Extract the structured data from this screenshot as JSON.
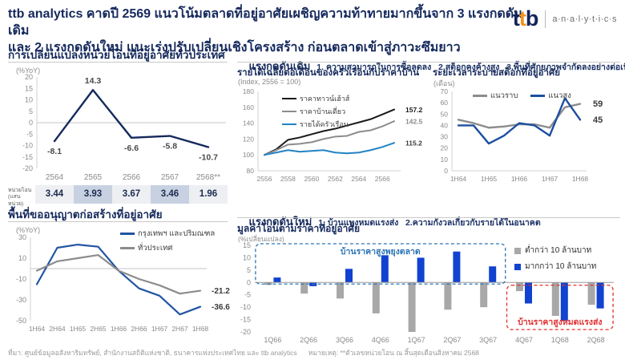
{
  "header": {
    "title_line1": "ttb analytics คาดปี 2569 แนวโน้มตลาดที่อยู่อาศัยเผชิญความท้าทายมากขึ้นจาก 3 แรงกดดันเดิม",
    "title_line2": "และ 2 แรงกดดันใหม่ แนะเร่งปรับเปลี่ยนเชิงโครงสร้าง ก่อนตลาดเข้าสู่ภาวะซึมยาว",
    "logo": {
      "t1": "t",
      "t2": "t",
      "b": "b",
      "sub": "a·n·a·l·y·t·i·c·s"
    }
  },
  "sections": {
    "old_heading": "แรงกดดันเดิม",
    "old_items": "1. ความสามารถในการซื้อลดลง   2.สต็อกคงค้างสูง   3.พื้นที่ศักยภาพจำกัดลงอย่างต่อเนื่อง",
    "new_heading": "แรงกดดันใหม่",
    "new_items": "1. บ้านแพงหมดแรงส่ง   2.ความกังวลเกี่ยวกับรายได้ในอนาคต"
  },
  "colors": {
    "navy": "#15295c",
    "orange": "#f5911e",
    "bright_blue": "#1142d0",
    "mid_blue": "#2155a3",
    "steel_blue": "#2283c5",
    "gray_line": "#8c8c8c",
    "bar_gray": "#a8a8a8",
    "annotation_blue": "#2e75b6",
    "annotation_red": "#e03131",
    "table_bg": "#edeff2",
    "table_highlight": "#c7d1e1"
  },
  "chart_data": [
    {
      "id": "transfer-units-yoy",
      "type": "line",
      "title": "การเปลี่ยนแปลงหน่วยโอนที่อยู่อาศัยทั่วประเทศ",
      "unit_label": "(%YoY)",
      "categories": [
        "2564",
        "2565",
        "2566",
        "2567",
        "2568**"
      ],
      "ylim": [
        -20,
        20
      ],
      "yticks": [
        20,
        15,
        10,
        5,
        0,
        -5,
        -10,
        -15,
        -20
      ],
      "grid": "zero-line-only",
      "series": [
        {
          "name": "การเปลี่ยนแปลงหน่วยโอน (%YoY)",
          "color": "#15295c",
          "values": [
            -8.1,
            14.3,
            -6.6,
            -5.8,
            -10.7
          ]
        }
      ],
      "table": {
        "label_line1": "หน่วยโอน",
        "label_line2": "(แสนหน่วย)",
        "values": [
          "3.44",
          "3.93",
          "3.67",
          "3.46",
          "1.96"
        ],
        "highlighted_columns": [
          1,
          3
        ]
      }
    },
    {
      "id": "income-vs-house-price",
      "type": "line",
      "title": "รายได้เฉลี่ยต่อเดือนของครัวเรือนกับราคาบ้าน",
      "unit_label": "(Index, 2556 = 100)",
      "categories": [
        "2556",
        "2557",
        "2558",
        "2559",
        "2560",
        "2561",
        "2562",
        "2563",
        "2564",
        "2565",
        "2566",
        "2567"
      ],
      "xticks_shown": [
        "2556",
        "2558",
        "2560",
        "2562",
        "2564",
        "2566"
      ],
      "ylim": [
        80,
        180
      ],
      "yticks": [
        180,
        160,
        140,
        120,
        100,
        80
      ],
      "series": [
        {
          "name": "ราคาทาวน์เฮ้าส์",
          "color": "#1a1a1a",
          "end_label": "157.2",
          "values": [
            100,
            107,
            119,
            122,
            126,
            130,
            133,
            137,
            141,
            145,
            151,
            157.2
          ]
        },
        {
          "name": "ราคาบ้านเดี่ยว",
          "color": "#8c8c8c",
          "end_label": "142.5",
          "values": [
            100,
            106,
            113,
            114,
            116,
            120,
            123,
            124,
            129,
            131,
            136,
            142.5
          ]
        },
        {
          "name": "รายได้ครัวเรือน",
          "color": "#2283c5",
          "end_label": "115.2",
          "values": [
            100,
            103,
            106,
            104,
            105,
            106,
            103,
            102,
            103,
            106,
            110,
            115.2
          ]
        }
      ]
    },
    {
      "id": "stock-absorption-period",
      "type": "line",
      "title": "ระยะเวลาระบายสต็อกที่อยู่อาศัย",
      "unit_label": "(เดือน)",
      "categories": [
        "1H64",
        "2H64",
        "1H65",
        "2H65",
        "1H66",
        "2H66",
        "1H67",
        "2H67",
        "1H68"
      ],
      "xticks_shown": [
        "1H64",
        "1H65",
        "1H66",
        "1H67",
        "1H68"
      ],
      "ylim": [
        0,
        70
      ],
      "yticks": [
        70,
        60,
        50,
        40,
        30,
        20,
        10,
        0
      ],
      "series": [
        {
          "name": "แนวราบ",
          "color": "#8c8c8c",
          "end_label": "59",
          "values": [
            45,
            42,
            38,
            39,
            41,
            41,
            38,
            56,
            59
          ]
        },
        {
          "name": "แนวสูง",
          "color": "#1d4fa1",
          "end_label": "45",
          "values": [
            40,
            40,
            24,
            31,
            42,
            40,
            31,
            64,
            45
          ]
        }
      ]
    },
    {
      "id": "construction-permit-area",
      "type": "line",
      "title": "พื้นที่ขออนุญาตก่อสร้างที่อยู่อาศัย",
      "unit_label": "(%YoY)",
      "categories": [
        "1H64",
        "2H64",
        "1H65",
        "2H65",
        "1H66",
        "2H66",
        "1H67",
        "2H67",
        "1H68"
      ],
      "ylim": [
        -50,
        30
      ],
      "yticks": [
        30,
        10,
        -10,
        -30,
        -50
      ],
      "grid": "zero-line-only",
      "series": [
        {
          "name": "กรุงเทพฯ และปริมณฑล",
          "color": "#2155a3",
          "end_label": "-36.6",
          "values": [
            -15,
            20,
            23,
            21,
            -2,
            -19,
            -26,
            -44,
            -36.6
          ]
        },
        {
          "name": "ทั่วประเทศ",
          "color": "#8c8c8c",
          "end_label": "-21.2",
          "values": [
            -2,
            7,
            10,
            13,
            -2,
            -10,
            -16,
            -24,
            -21.2
          ]
        }
      ]
    },
    {
      "id": "transfer-value-by-price",
      "type": "bar",
      "title": "มูลค่าโอนตามราคาที่อยู่อาศัย",
      "unit_label": "(%เปลี่ยนแปลง)",
      "categories": [
        "1Q66",
        "2Q66",
        "3Q66",
        "4Q66",
        "1Q67",
        "2Q67",
        "3Q67",
        "4Q67",
        "1Q68",
        "2Q68"
      ],
      "ylim": [
        -20,
        15
      ],
      "yticks": [
        15,
        10,
        5,
        0,
        -5,
        -10,
        -15,
        -20
      ],
      "series": [
        {
          "name": "ต่ำกว่า 10 ล้านบาท",
          "color": "#a8a8a8",
          "values": [
            -1,
            -4.5,
            -6.5,
            -12.5,
            -20,
            -11,
            -10,
            -3.5,
            -13.5,
            -9
          ]
        },
        {
          "name": "มากกว่า 10 ล้านบาท",
          "color": "#1142d0",
          "values": [
            2,
            -1.5,
            5.5,
            11,
            10,
            12.5,
            6.5,
            -8.5,
            -15.5,
            -10.5
          ]
        }
      ],
      "annotations": [
        {
          "label": "บ้านราคาสูงพยุงตลาด",
          "color": "#2e75b6",
          "from": "1Q66",
          "to": "3Q67",
          "side": "above"
        },
        {
          "label": "บ้านราคาสูงหมดแรงส่ง",
          "color": "#e03131",
          "from": "4Q67",
          "to": "2Q68",
          "side": "below"
        }
      ]
    }
  ],
  "footer": {
    "source": "ที่มา: ศูนย์ข้อมูลอสังหาริมทรัพย์, สำนักงานสถิติแห่งชาติ, ธนาคารแห่งประเทศไทย และ ttb analytics",
    "note": "หมายเหตุ: **ตัวเลขหน่วยโอน ณ สิ้นสุดเดือนสิงหาคม 2568"
  }
}
